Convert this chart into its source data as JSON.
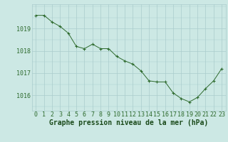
{
  "x": [
    0,
    1,
    2,
    3,
    4,
    5,
    6,
    7,
    8,
    9,
    10,
    11,
    12,
    13,
    14,
    15,
    16,
    17,
    18,
    19,
    20,
    21,
    22,
    23
  ],
  "y": [
    1019.6,
    1019.6,
    1019.3,
    1019.1,
    1018.8,
    1018.2,
    1018.1,
    1018.3,
    1018.1,
    1018.1,
    1017.75,
    1017.55,
    1017.4,
    1017.1,
    1016.65,
    1016.6,
    1016.6,
    1016.1,
    1015.85,
    1015.7,
    1015.9,
    1016.3,
    1016.65,
    1017.2
  ],
  "bg_color": "#cce8e4",
  "grid_color_major": "#aacccc",
  "line_color": "#2d6a2d",
  "marker_color": "#2d6a2d",
  "xlabel": "Graphe pression niveau de la mer (hPa)",
  "xlabel_color": "#1a4a1a",
  "ylabel_ticks": [
    1016,
    1017,
    1018,
    1019
  ],
  "ylim": [
    1015.3,
    1020.1
  ],
  "xlim": [
    -0.5,
    23.5
  ],
  "tick_label_color": "#2d6a2d",
  "tick_fontsize": 6,
  "xlabel_fontsize": 7
}
